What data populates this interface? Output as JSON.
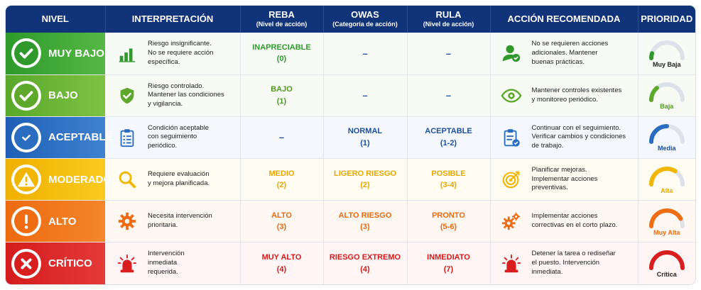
{
  "headers": {
    "nivel": "NIVEL",
    "interpretacion": "INTERPRETACIÓN",
    "reba": "REBA",
    "reba_sub": "(Nivel de acción)",
    "owas": "OWAS",
    "owas_sub": "(Categoría de acción)",
    "rula": "RULA",
    "rula_sub": "(Nivel de acción)",
    "accion": "ACCIÓN RECOMENDADA",
    "prioridad": "PRIORIDAD"
  },
  "rows": [
    {
      "nivel": "MUY BAJO",
      "badge_icon": "check-icon",
      "interp_icon": "bar-chart-icon",
      "interp": [
        "Riesgo insignificante.",
        "No se requiere acción",
        "específica."
      ],
      "reba": [
        "INAPRECIABLE",
        "(0)"
      ],
      "owas": [
        "–"
      ],
      "rula": [
        "–"
      ],
      "accion_icon": "user-check-icon",
      "accion": [
        "No se requieren acciones",
        "adicionales. Mantener",
        "buenas prácticas."
      ],
      "prioridad": "Muy Baja",
      "gauge_level": 0.1,
      "color": "#2f9a2b",
      "text_color": "#2f9a2b"
    },
    {
      "nivel": "BAJO",
      "badge_icon": "check-icon",
      "interp_icon": "shield-check-icon",
      "interp": [
        "Riesgo controlado.",
        "Mantener las condiciones",
        "y vigilancia."
      ],
      "reba": [
        "BAJO",
        "(1)"
      ],
      "owas": [
        "–"
      ],
      "rula": [
        "–"
      ],
      "accion_icon": "eye-icon",
      "accion": [
        "Mantener controles existentes",
        "y monitoreo periódico."
      ],
      "prioridad": "Baja",
      "gauge_level": 0.28,
      "color": "#5ea92c",
      "text_color": "#4e9a22"
    },
    {
      "nivel": "ACEPTABLE",
      "badge_icon": "shield-check-icon",
      "interp_icon": "clipboard-list-icon",
      "interp": [
        "Condición aceptable",
        "con seguimiento",
        "periódico."
      ],
      "reba": [
        "–"
      ],
      "owas": [
        "NORMAL",
        "(1)"
      ],
      "rula": [
        "ACEPTABLE",
        "(1-2)"
      ],
      "accion_icon": "clipboard-check-icon",
      "accion": [
        "Continuar con el seguimiento.",
        "Verificar cambios y condiciones",
        "de trabajo."
      ],
      "prioridad": "Media",
      "gauge_level": 0.5,
      "color": "#2a6cc0",
      "text_color": "#1c4fa3"
    },
    {
      "nivel": "MODERADO",
      "badge_icon": "warning-icon",
      "interp_icon": "search-icon",
      "interp": [
        "Requiere evaluación",
        "y mejora planificada."
      ],
      "reba": [
        "MEDIO",
        "(2)"
      ],
      "owas": [
        "LIGERO RIESGO",
        "(2)"
      ],
      "rula": [
        "POSIBLE",
        "(3-4)"
      ],
      "accion_icon": "target-icon",
      "accion": [
        "Planificar mejoras.",
        "Implementar acciones",
        "preventivas."
      ],
      "prioridad": "Alta",
      "gauge_level": 0.68,
      "color": "#f2b600",
      "text_color": "#e8a800"
    },
    {
      "nivel": "ALTO",
      "badge_icon": "exclamation-icon",
      "interp_icon": "gear-icon",
      "interp": [
        "Necesita intervención",
        "prioritaria."
      ],
      "reba": [
        "ALTO",
        "(3)"
      ],
      "owas": [
        "ALTO RIESGO",
        "(3)"
      ],
      "rula": [
        "PRONTO",
        "(5-6)"
      ],
      "accion_icon": "gears-icon",
      "accion": [
        "Implementar acciones",
        "correctivas en el corto plazo."
      ],
      "prioridad": "Muy Alta",
      "gauge_level": 0.84,
      "color": "#ef6c12",
      "text_color": "#ea6a10"
    },
    {
      "nivel": "CRÍTICO",
      "badge_icon": "x-icon",
      "interp_icon": "siren-icon",
      "interp": [
        "Intervención",
        "inmediata",
        "requerida."
      ],
      "reba": [
        "MUY ALTO",
        "(4)"
      ],
      "owas": [
        "RIESGO EXTREMO",
        "(4)"
      ],
      "rula": [
        "INMEDIATO",
        "(7)"
      ],
      "accion_icon": "siren-icon",
      "accion": [
        "Detener la tarea o rediseñar",
        "el puesto. Intervención",
        "inmediata."
      ],
      "prioridad": "Crítica",
      "gauge_level": 1.0,
      "color": "#d81e1e",
      "text_color": "#d41b1b"
    }
  ]
}
